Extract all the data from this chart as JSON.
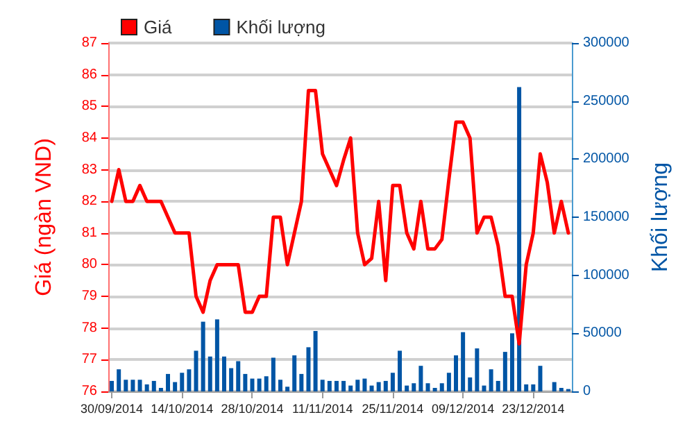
{
  "chart_data": {
    "type": "line",
    "categories": [
      "30/09/2014",
      null,
      null,
      null,
      null,
      null,
      null,
      null,
      null,
      null,
      "14/10/2014",
      null,
      null,
      null,
      null,
      null,
      null,
      null,
      null,
      null,
      "28/10/2014",
      null,
      null,
      null,
      null,
      null,
      null,
      null,
      null,
      null,
      "11/11/2014",
      null,
      null,
      null,
      null,
      null,
      null,
      null,
      null,
      null,
      "25/11/2014",
      null,
      null,
      null,
      null,
      null,
      null,
      null,
      null,
      null,
      "09/12/2014",
      null,
      null,
      null,
      null,
      null,
      null,
      null,
      null,
      null,
      "23/12/2014",
      null,
      null,
      null,
      null,
      null
    ],
    "series": [
      {
        "name": "Giá",
        "color": "#ff0000",
        "values": [
          82,
          83,
          82,
          82,
          82.5,
          82,
          82,
          82,
          81.5,
          81,
          81,
          81,
          79,
          78.5,
          79.5,
          80,
          80,
          80,
          80,
          78.5,
          78.5,
          79,
          79,
          81.5,
          81.5,
          80,
          81,
          82,
          85.5,
          85.5,
          83.5,
          83,
          82.5,
          83.3,
          84,
          81,
          80,
          80.2,
          82,
          79.5,
          82.5,
          82.5,
          81,
          80.5,
          82,
          80.5,
          80.5,
          80.8,
          82.7,
          84.5,
          84.5,
          84,
          81,
          81.5,
          81.5,
          80.6,
          79,
          79,
          77.5,
          80,
          81,
          83.5,
          82.6,
          81,
          82,
          81
        ]
      },
      {
        "name": "Khối lượng",
        "type": "bar",
        "axis": "y2",
        "color": "#0055a5",
        "values": [
          9000,
          19000,
          10000,
          10000,
          10000,
          6000,
          9000,
          3000,
          15000,
          8000,
          16000,
          19000,
          35000,
          60000,
          30000,
          62000,
          30000,
          20000,
          26000,
          15000,
          11000,
          11000,
          13000,
          29000,
          10000,
          4000,
          31000,
          15000,
          38000,
          52000,
          10000,
          9000,
          9000,
          9000,
          5000,
          10000,
          11000,
          5000,
          8000,
          9000,
          16000,
          35000,
          5000,
          7000,
          22000,
          7000,
          3000,
          7000,
          16000,
          31000,
          51000,
          12000,
          37000,
          5000,
          19000,
          9000,
          34000,
          50000,
          262000,
          6000,
          6000,
          22000,
          0,
          8000,
          3000,
          2000
        ]
      }
    ],
    "ylabel": "Giá (ngàn VND)",
    "y2label": "Khối lượng",
    "ylim": [
      76,
      87
    ],
    "yticks": [
      76,
      77,
      78,
      79,
      80,
      81,
      82,
      83,
      84,
      85,
      86,
      87
    ],
    "y2lim": [
      0,
      300000
    ],
    "y2ticks": [
      0,
      50000,
      100000,
      150000,
      200000,
      250000,
      300000
    ],
    "grid": "y",
    "legend": "top left",
    "marker": "none",
    "line_style": "solid"
  }
}
